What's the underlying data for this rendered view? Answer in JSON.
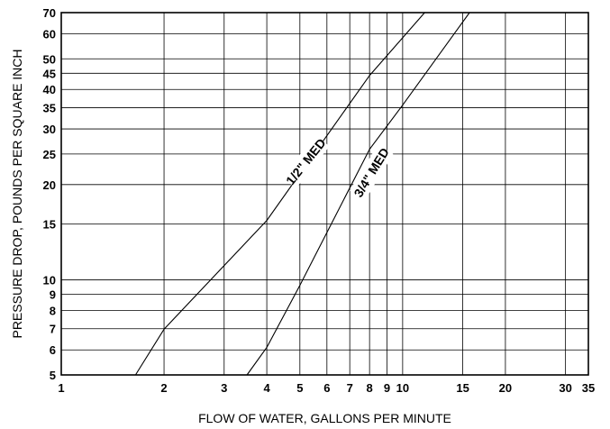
{
  "chart_data": {
    "type": "line",
    "title": "",
    "xlabel": "FLOW OF WATER, GALLONS PER MINUTE",
    "ylabel": "PRESSURE DROP, POUNDS PER SQUARE INCH",
    "x_scale": "log",
    "y_scale": "log",
    "xlim": [
      1,
      35
    ],
    "ylim": [
      5,
      70
    ],
    "grid": true,
    "x_ticks": [
      1,
      2,
      3,
      4,
      5,
      6,
      7,
      8,
      9,
      10,
      15,
      20,
      30,
      35
    ],
    "y_ticks": [
      5,
      6,
      7,
      8,
      9,
      10,
      15,
      20,
      25,
      30,
      35,
      40,
      45,
      50,
      60,
      70
    ],
    "series": [
      {
        "name": "1/2\" MED",
        "x": [
          1.65,
          2.0,
          4.0,
          8.0,
          11.6
        ],
        "y": [
          5.0,
          6.98,
          15.4,
          44.3,
          70.0
        ]
      },
      {
        "name": "3/4\" MED",
        "x": [
          3.5,
          4.0,
          5.0,
          8.0,
          10.0,
          15.7
        ],
        "y": [
          5.0,
          6.11,
          9.6,
          25.9,
          35.7,
          70.0
        ]
      }
    ]
  }
}
